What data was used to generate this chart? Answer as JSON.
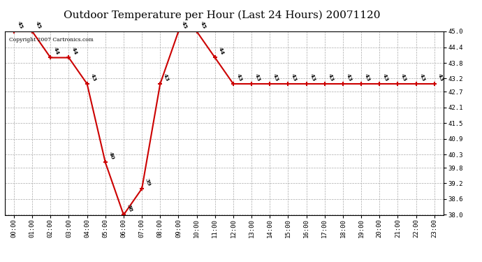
{
  "title": "Outdoor Temperature per Hour (Last 24 Hours) 20071120",
  "copyright": "Copyright 2007 Cartronics.com",
  "hours": [
    "00:00",
    "01:00",
    "02:00",
    "03:00",
    "04:00",
    "05:00",
    "06:00",
    "07:00",
    "08:00",
    "09:00",
    "10:00",
    "11:00",
    "12:00",
    "13:00",
    "14:00",
    "15:00",
    "16:00",
    "17:00",
    "18:00",
    "19:00",
    "20:00",
    "21:00",
    "22:00",
    "23:00"
  ],
  "temps": [
    45,
    45,
    44,
    44,
    43,
    40,
    38,
    39,
    43,
    45,
    45,
    44,
    43,
    43,
    43,
    43,
    43,
    43,
    43,
    43,
    43,
    43,
    43,
    43
  ],
  "ylim_min": 38.0,
  "ylim_max": 45.0,
  "yticks": [
    38.0,
    38.6,
    39.2,
    39.8,
    40.3,
    40.9,
    41.5,
    42.1,
    42.7,
    43.2,
    43.8,
    44.4,
    45.0
  ],
  "line_color": "#cc0000",
  "marker_color": "#cc0000",
  "bg_color": "#ffffff",
  "grid_color": "#aaaaaa",
  "title_fontsize": 11,
  "annotation_fontsize": 6,
  "tick_fontsize": 6.5
}
